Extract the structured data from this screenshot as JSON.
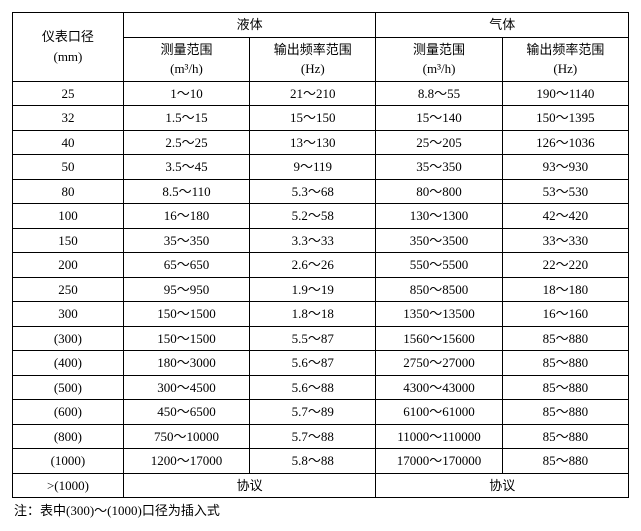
{
  "headers": {
    "diameter": "仪表口径",
    "diameter_unit": "(mm)",
    "liquid": "液体",
    "gas": "气体",
    "range": "测量范围",
    "range_unit": "(m³/h)",
    "freq": "输出频率范围",
    "freq_unit": "(Hz)"
  },
  "rows": [
    {
      "d": "25",
      "lr": "1～10",
      "lf": "21～210",
      "gr": "8.8～55",
      "gf": "190～1140"
    },
    {
      "d": "32",
      "lr": "1.5～15",
      "lf": "15～150",
      "gr": "15～140",
      "gf": "150～1395"
    },
    {
      "d": "40",
      "lr": "2.5～25",
      "lf": "13～130",
      "gr": "25～205",
      "gf": "126～1036"
    },
    {
      "d": "50",
      "lr": "3.5～45",
      "lf": "9～119",
      "gr": "35～350",
      "gf": "93～930"
    },
    {
      "d": "80",
      "lr": "8.5～110",
      "lf": "5.3～68",
      "gr": "80～800",
      "gf": "53～530"
    },
    {
      "d": "100",
      "lr": "16～180",
      "lf": "5.2～58",
      "gr": "130～1300",
      "gf": "42～420"
    },
    {
      "d": "150",
      "lr": "35～350",
      "lf": "3.3～33",
      "gr": "350～3500",
      "gf": "33～330"
    },
    {
      "d": "200",
      "lr": "65～650",
      "lf": "2.6～26",
      "gr": "550～5500",
      "gf": "22～220"
    },
    {
      "d": "250",
      "lr": "95～950",
      "lf": "1.9～19",
      "gr": "850～8500",
      "gf": "18～180"
    },
    {
      "d": "300",
      "lr": "150～1500",
      "lf": "1.8～18",
      "gr": "1350～13500",
      "gf": "16～160"
    },
    {
      "d": "(300)",
      "lr": "150～1500",
      "lf": "5.5～87",
      "gr": "1560～15600",
      "gf": "85～880"
    },
    {
      "d": "(400)",
      "lr": "180～3000",
      "lf": "5.6～87",
      "gr": "2750～27000",
      "gf": "85～880"
    },
    {
      "d": "(500)",
      "lr": "300～4500",
      "lf": "5.6～88",
      "gr": "4300～43000",
      "gf": "85～880"
    },
    {
      "d": "(600)",
      "lr": "450～6500",
      "lf": "5.7～89",
      "gr": "6100～61000",
      "gf": "85～880"
    },
    {
      "d": "(800)",
      "lr": "750～10000",
      "lf": "5.7～88",
      "gr": "11000～110000",
      "gf": "85～880"
    },
    {
      "d": "(1000)",
      "lr": "1200～17000",
      "lf": "5.8～88",
      "gr": "17000～170000",
      "gf": "85～880"
    }
  ],
  "lastrow": {
    "d": ">(1000)",
    "l": "协议",
    "g": "协议"
  },
  "note": "注：表中(300)～(1000)口径为插入式"
}
